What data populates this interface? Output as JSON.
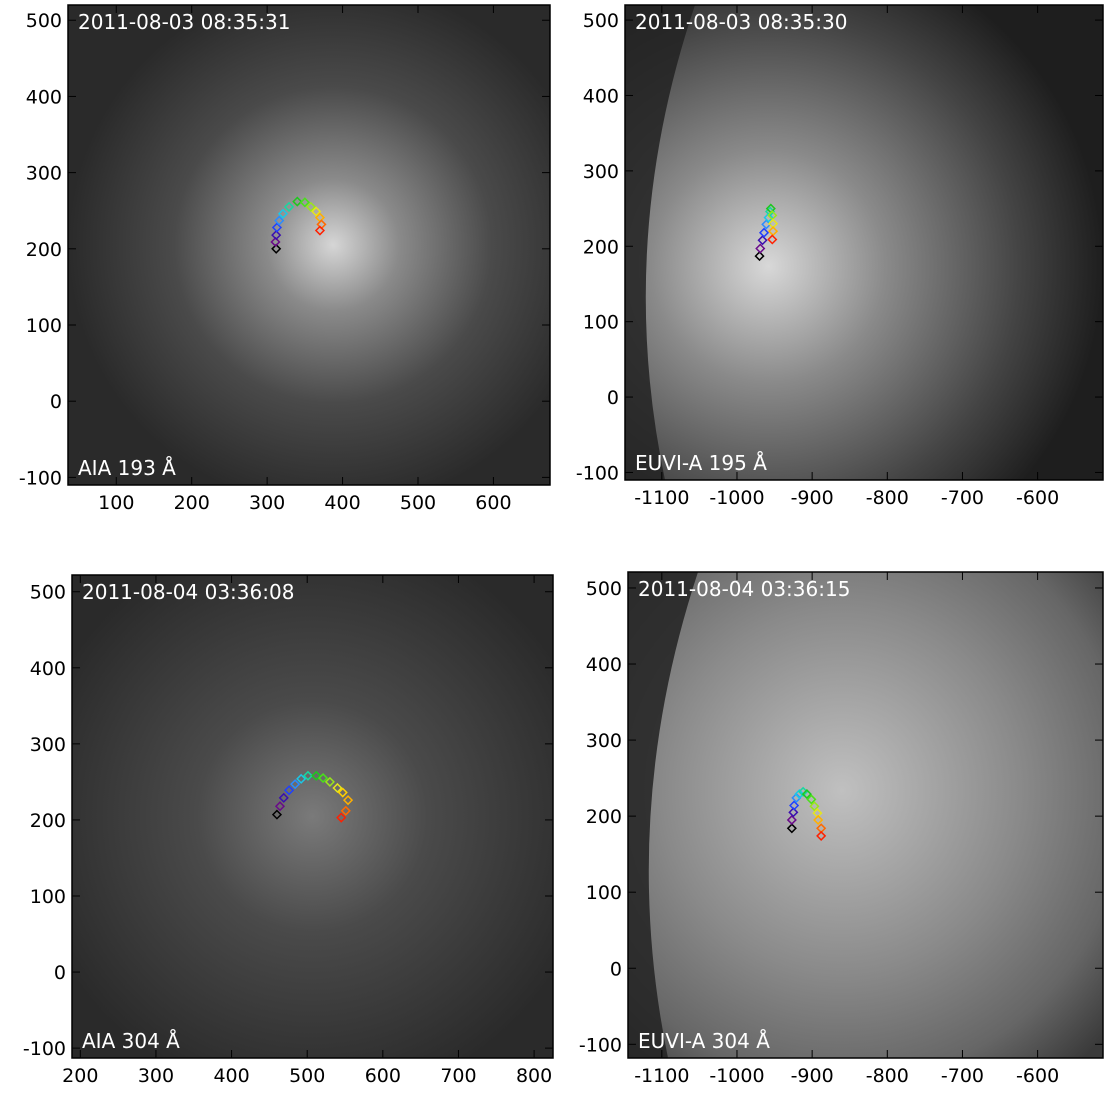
{
  "chart_data": [
    {
      "type": "scatter",
      "annotation_top": "2011-08-03 08:35:31",
      "annotation_bottom": "AIA 193 Å",
      "xlim": [
        36,
        675
      ],
      "ylim": [
        -110,
        520
      ],
      "xticks": [
        100,
        200,
        300,
        400,
        500,
        600
      ],
      "yticks": [
        -100,
        0,
        100,
        200,
        300,
        400,
        500
      ],
      "x": [
        312,
        311,
        312,
        313,
        316,
        321,
        329,
        340,
        350,
        358,
        365,
        370,
        372,
        370
      ],
      "values": [
        200,
        209,
        218,
        228,
        237,
        246,
        255,
        262,
        261,
        255,
        249,
        241,
        232,
        224
      ],
      "colors": [
        "#000000",
        "#6a0a8a",
        "#3a0fb0",
        "#2040ff",
        "#2a8cff",
        "#1ac8e8",
        "#18d8a0",
        "#1ec81e",
        "#4ae01a",
        "#9ae61a",
        "#e6e61a",
        "#ffb000",
        "#ff6a00",
        "#ff2000"
      ]
    },
    {
      "type": "scatter",
      "annotation_top": "2011-08-03 08:35:30",
      "annotation_bottom": "EUVI-A 195 Å",
      "xlim": [
        -1149,
        -513
      ],
      "ylim": [
        -110,
        520
      ],
      "xticks": [
        -1100,
        -1000,
        -900,
        -800,
        -700,
        -600
      ],
      "yticks": [
        -100,
        0,
        100,
        200,
        300,
        400,
        500
      ],
      "x": [
        -970,
        -969,
        -966,
        -964,
        -961,
        -958,
        -956,
        -955,
        -953,
        -952,
        -952,
        -953
      ],
      "values": [
        187,
        197,
        208,
        218,
        229,
        238,
        246,
        250,
        241,
        230,
        220,
        209
      ],
      "colors": [
        "#000000",
        "#6a0a8a",
        "#3a0fb0",
        "#2040ff",
        "#2a8cff",
        "#1ac8e8",
        "#18d8a0",
        "#1ec81e",
        "#9ae61a",
        "#e6e61a",
        "#ffb000",
        "#ff2000"
      ]
    },
    {
      "type": "scatter",
      "annotation_top": "2011-08-04 03:36:08",
      "annotation_bottom": "AIA 304 Å",
      "xlim": [
        189,
        825
      ],
      "ylim": [
        -113,
        522
      ],
      "xticks": [
        200,
        300,
        400,
        500,
        600,
        700,
        800
      ],
      "yticks": [
        -100,
        0,
        100,
        200,
        300,
        400,
        500
      ],
      "x": [
        460,
        464,
        469,
        476,
        484,
        492,
        501,
        512,
        521,
        530,
        540,
        547,
        554,
        551,
        545
      ],
      "values": [
        207,
        218,
        229,
        239,
        247,
        254,
        258,
        258,
        255,
        250,
        242,
        236,
        226,
        212,
        203
      ],
      "colors": [
        "#000000",
        "#6a0a8a",
        "#3a0fb0",
        "#2040ff",
        "#2a8cff",
        "#1ac8e8",
        "#18d8a0",
        "#1ec81e",
        "#4ae01a",
        "#9ae61a",
        "#e6e61a",
        "#ffd000",
        "#ffb000",
        "#ff6a00",
        "#ff2000"
      ]
    },
    {
      "type": "scatter",
      "annotation_top": "2011-08-04 03:36:15",
      "annotation_bottom": "EUVI-A 304 Å",
      "xlim": [
        -1145,
        -513
      ],
      "ylim": [
        -118,
        521
      ],
      "xticks": [
        -1100,
        -1000,
        -900,
        -800,
        -700,
        -600
      ],
      "yticks": [
        -100,
        0,
        100,
        200,
        300,
        400,
        500
      ],
      "x": [
        -927,
        -927,
        -925,
        -924,
        -921,
        -917,
        -912,
        -907,
        -901,
        -897,
        -893,
        -892,
        -888,
        -888
      ],
      "values": [
        184,
        195,
        205,
        214,
        224,
        229,
        232,
        229,
        222,
        213,
        204,
        195,
        184,
        174
      ],
      "colors": [
        "#000000",
        "#6a0a8a",
        "#3a0fb0",
        "#2040ff",
        "#2a8cff",
        "#1ac8e8",
        "#18d8a0",
        "#1ec81e",
        "#4ae01a",
        "#9ae61a",
        "#e6e61a",
        "#ffb000",
        "#ff6a00",
        "#ff2000"
      ]
    }
  ]
}
